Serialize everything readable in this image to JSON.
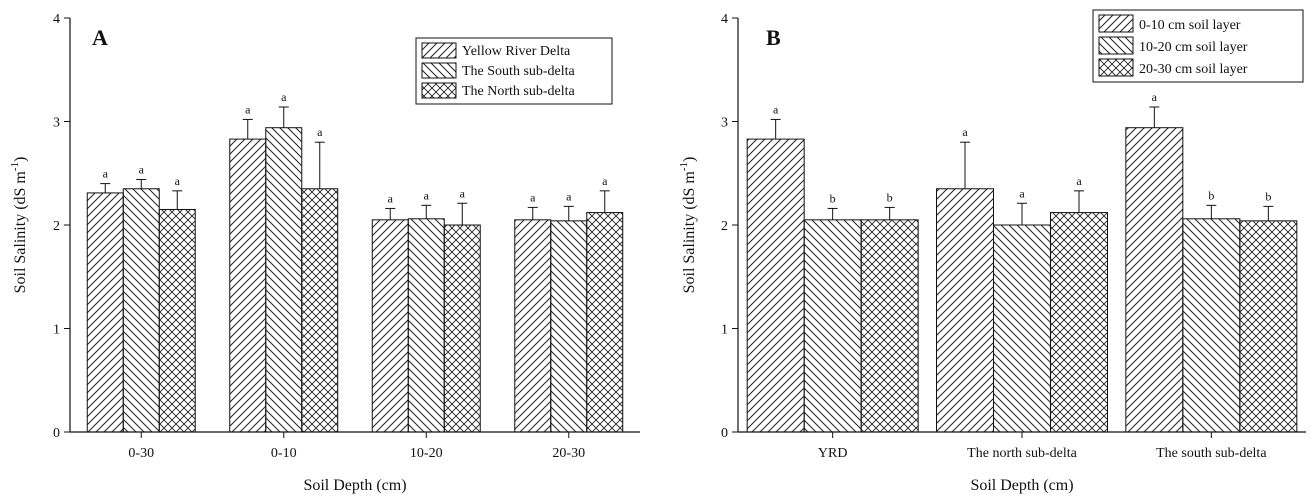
{
  "chart_data": [
    {
      "type": "bar",
      "panel_label": "A",
      "title": "",
      "xlabel": "Soil Depth (cm)",
      "ylabel": "Soil Salinity (dS m",
      "ylabel_sup": "-1",
      "ylabel_close": ")",
      "ylim": [
        0,
        4
      ],
      "yticks": [
        0,
        1,
        2,
        3,
        4
      ],
      "ytick_labels": [
        "0",
        "1",
        "2",
        "3",
        "4"
      ],
      "grid": false,
      "legend_position": "top-right",
      "categories": [
        "0-30",
        "0-10",
        "10-20",
        "20-30"
      ],
      "series": [
        {
          "name": "Yellow River Delta",
          "pattern": "diag-right",
          "values": [
            2.31,
            2.83,
            2.05,
            2.05
          ],
          "errors": [
            0.09,
            0.19,
            0.11,
            0.12
          ],
          "letters": [
            "a",
            "a",
            "a",
            "a"
          ]
        },
        {
          "name": "The South sub-delta",
          "pattern": "diag-left",
          "values": [
            2.35,
            2.94,
            2.06,
            2.04
          ],
          "errors": [
            0.09,
            0.2,
            0.13,
            0.14
          ],
          "letters": [
            "a",
            "a",
            "a",
            "a"
          ]
        },
        {
          "name": "The North sub-delta",
          "pattern": "cross",
          "values": [
            2.15,
            2.35,
            2.0,
            2.12
          ],
          "errors": [
            0.18,
            0.45,
            0.21,
            0.21
          ],
          "letters": [
            "a",
            "a",
            "a",
            "a"
          ]
        }
      ]
    },
    {
      "type": "bar",
      "panel_label": "B",
      "title": "",
      "xlabel": "Soil Depth (cm)",
      "ylabel": "Soil Salinity (dS m",
      "ylabel_sup": "-1",
      "ylabel_close": ")",
      "ylim": [
        0,
        4
      ],
      "yticks": [
        0,
        1,
        2,
        3,
        4
      ],
      "ytick_labels": [
        "0",
        "1",
        "2",
        "3",
        "4"
      ],
      "grid": false,
      "legend_position": "top-right",
      "categories": [
        "YRD",
        "The north sub-delta",
        "The south sub-delta"
      ],
      "series": [
        {
          "name": "0-10 cm soil layer",
          "pattern": "diag-right",
          "values": [
            2.83,
            2.35,
            2.94
          ],
          "errors": [
            0.19,
            0.45,
            0.2
          ],
          "letters": [
            "a",
            "a",
            "a"
          ]
        },
        {
          "name": "10-20 cm soil layer",
          "pattern": "diag-left",
          "values": [
            2.05,
            2.0,
            2.06
          ],
          "errors": [
            0.11,
            0.21,
            0.13
          ],
          "letters": [
            "b",
            "a",
            "b"
          ]
        },
        {
          "name": "20-30 cm soil layer",
          "pattern": "cross",
          "values": [
            2.05,
            2.12,
            2.04
          ],
          "errors": [
            0.12,
            0.21,
            0.14
          ],
          "letters": [
            "b",
            "a",
            "b"
          ]
        }
      ]
    }
  ]
}
